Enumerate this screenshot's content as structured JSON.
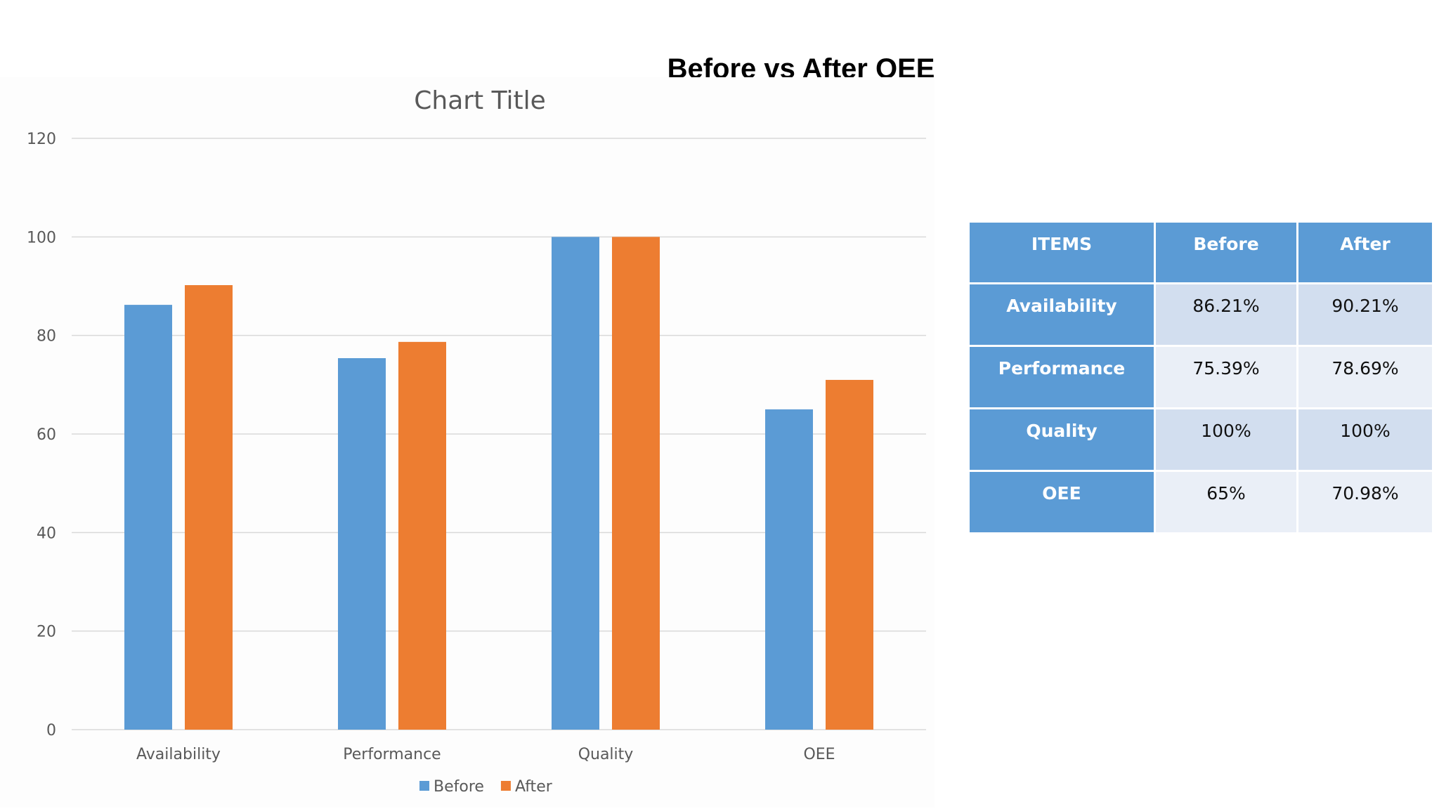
{
  "slide": {
    "title": "Before vs After OEE"
  },
  "chart_data": {
    "type": "bar",
    "title": "Chart Title",
    "categories": [
      "Availability",
      "Performance",
      "Quality",
      "OEE"
    ],
    "series": [
      {
        "name": "Before",
        "values": [
          86.21,
          75.39,
          100,
          65
        ],
        "color": "#5b9bd5"
      },
      {
        "name": "After",
        "values": [
          90.21,
          78.69,
          100,
          70.98
        ],
        "color": "#ed7d31"
      }
    ],
    "ylim": [
      0,
      120
    ],
    "yticks": [
      "0",
      "20",
      "40",
      "60",
      "80",
      "100",
      "120"
    ],
    "grid": true,
    "legend": "bottom"
  },
  "table": {
    "headers": [
      "ITEMS",
      "Before",
      "After"
    ],
    "rows": [
      {
        "item": "Availability",
        "before": "86.21%",
        "after": "90.21%"
      },
      {
        "item": "Performance",
        "before": "75.39%",
        "after": "78.69%"
      },
      {
        "item": "Quality",
        "before": "100%",
        "after": "100%"
      },
      {
        "item": "OEE",
        "before": "65%",
        "after": "70.98%"
      }
    ]
  }
}
